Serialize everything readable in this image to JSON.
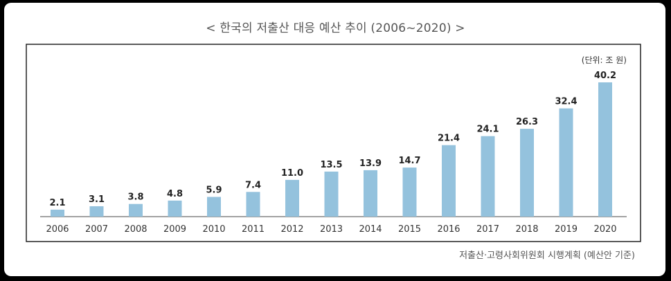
{
  "chart_data": {
    "type": "bar",
    "title": "< 한국의 저출산 대응 예산 추이 (2006~2020) >",
    "unit_label": "(단위: 조 원)",
    "categories": [
      "2006",
      "2007",
      "2008",
      "2009",
      "2010",
      "2011",
      "2012",
      "2013",
      "2014",
      "2015",
      "2016",
      "2017",
      "2018",
      "2019",
      "2020"
    ],
    "values": [
      2.1,
      3.1,
      3.8,
      4.8,
      5.9,
      7.4,
      11.0,
      13.5,
      13.9,
      14.7,
      21.4,
      24.1,
      26.3,
      32.4,
      40.2
    ],
    "value_labels": [
      "2.1",
      "3.1",
      "3.8",
      "4.8",
      "5.9",
      "7.4",
      "11.0",
      "13.5",
      "13.9",
      "14.7",
      "21.4",
      "24.1",
      "26.3",
      "32.4",
      "40.2"
    ],
    "ylim": [
      0,
      42
    ],
    "xlabel": "",
    "ylabel": "",
    "bar_color": "#94c2dd",
    "source": "저출산·고령사회위원회 시행계획 (예산안 기준)"
  }
}
